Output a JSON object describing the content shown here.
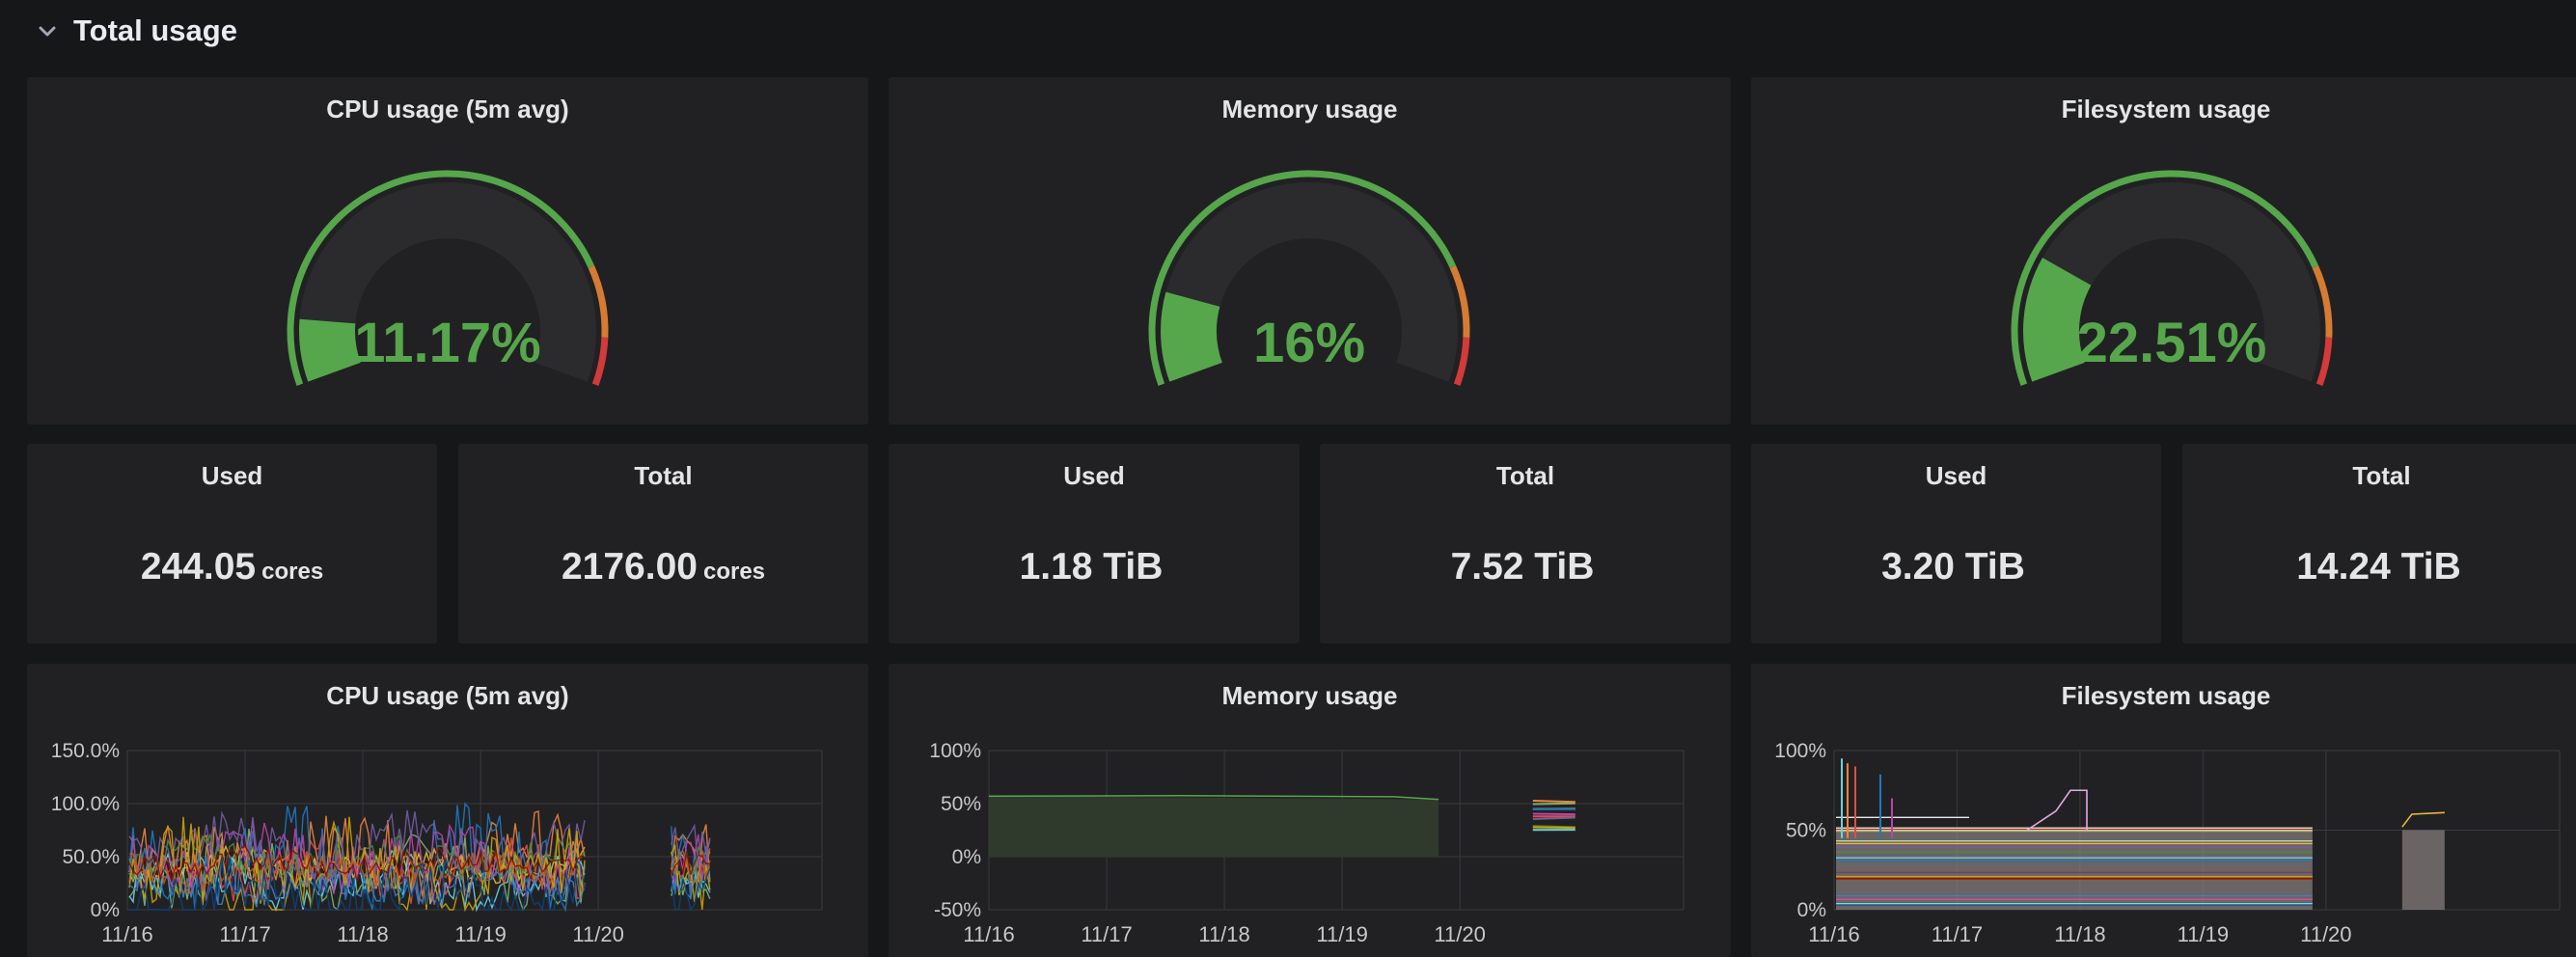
{
  "row": {
    "title": "Total usage",
    "icon": "chevron-down-icon"
  },
  "colors": {
    "background": "#161719",
    "panel": "#212124",
    "green": "#56a64b",
    "orange": "#d67b32",
    "red": "#d33a3a",
    "text": "#d8d9da"
  },
  "gauges": [
    {
      "title": "CPU usage (5m avg)",
      "value_text": "11.17%",
      "value": 11.17
    },
    {
      "title": "Memory usage",
      "value_text": "16%",
      "value": 16
    },
    {
      "title": "Filesystem usage",
      "value_text": "22.51%",
      "value": 22.51
    }
  ],
  "stats": [
    {
      "title": "Used",
      "value": "244.05",
      "unit": "cores"
    },
    {
      "title": "Total",
      "value": "2176.00",
      "unit": "cores"
    },
    {
      "title": "Used",
      "value": "1.18 TiB",
      "unit": ""
    },
    {
      "title": "Total",
      "value": "7.52 TiB",
      "unit": ""
    },
    {
      "title": "Used",
      "value": "3.20 TiB",
      "unit": ""
    },
    {
      "title": "Total",
      "value": "14.24 TiB",
      "unit": ""
    }
  ],
  "chart_data": [
    {
      "type": "line",
      "title": "CPU usage (5m avg)",
      "x": [
        "11/16",
        "11/17",
        "11/18",
        "11/19",
        "11/20"
      ],
      "yticks": [
        "150.0%",
        "100.0%",
        "50.0%",
        "0%"
      ],
      "ylim": [
        0,
        150
      ],
      "grid": true,
      "series_note": "many overlapping per-node series fluctuating between 0% and 100%, with a gap after 11/20"
    },
    {
      "type": "line",
      "title": "Memory usage",
      "x": [
        "11/16",
        "11/17",
        "11/18",
        "11/19",
        "11/20"
      ],
      "yticks": [
        "100%",
        "50%",
        "0%",
        "-50%"
      ],
      "ylim": [
        -50,
        100
      ],
      "grid": true,
      "series_note": "flat series near 55% until shortly before 11/20, then a gap"
    },
    {
      "type": "area",
      "title": "Filesystem usage",
      "x": [
        "11/16",
        "11/17",
        "11/18",
        "11/19",
        "11/20"
      ],
      "yticks": [
        "100%",
        "50%",
        "0%"
      ],
      "ylim": [
        0,
        100
      ],
      "grid": true,
      "series_note": "many stacked flat series between 0% and about 50%, a few spikes near 11/16 and 11/17"
    }
  ]
}
